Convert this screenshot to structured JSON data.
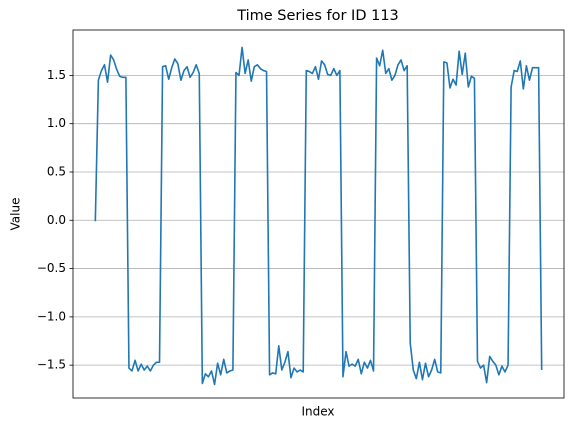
{
  "chart_data": {
    "type": "line",
    "title": "Time Series for ID 113",
    "x_label": "Index",
    "y_label": "Value",
    "color": "#1f77b4",
    "grid": true,
    "xlim": [
      -7.3,
      153.3
    ],
    "ylim": [
      -1.84,
      1.97
    ],
    "yticks": [
      {
        "value": -1.5,
        "label": "−1.5"
      },
      {
        "value": -1.0,
        "label": "−1.0"
      },
      {
        "value": -0.5,
        "label": "−0.5"
      },
      {
        "value": 0.0,
        "label": "0.0"
      },
      {
        "value": 0.5,
        "label": "0.5"
      },
      {
        "value": 1.0,
        "label": "1.0"
      },
      {
        "value": 1.5,
        "label": "1.5"
      }
    ],
    "values": [
      -0.01,
      1.45,
      1.55,
      1.61,
      1.43,
      1.71,
      1.66,
      1.56,
      1.49,
      1.48,
      1.48,
      -1.53,
      -1.56,
      -1.45,
      -1.56,
      -1.49,
      -1.55,
      -1.51,
      -1.56,
      -1.5,
      -1.47,
      -1.47,
      1.59,
      1.6,
      1.46,
      1.58,
      1.67,
      1.62,
      1.45,
      1.55,
      1.59,
      1.48,
      1.53,
      1.61,
      1.52,
      -1.69,
      -1.59,
      -1.62,
      -1.56,
      -1.7,
      -1.48,
      -1.6,
      -1.44,
      -1.58,
      -1.56,
      -1.55,
      1.53,
      1.5,
      1.79,
      1.52,
      1.66,
      1.44,
      1.59,
      1.61,
      1.57,
      1.55,
      1.54,
      -1.6,
      -1.58,
      -1.59,
      -1.3,
      -1.55,
      -1.47,
      -1.36,
      -1.63,
      -1.53,
      -1.57,
      -1.55,
      -1.57,
      1.55,
      1.54,
      1.52,
      1.59,
      1.46,
      1.65,
      1.61,
      1.51,
      1.5,
      1.57,
      1.5,
      1.55,
      -1.62,
      -1.36,
      -1.51,
      -1.49,
      -1.51,
      -1.44,
      -1.59,
      -1.47,
      -1.53,
      -1.45,
      -1.56,
      1.68,
      1.6,
      1.76,
      1.52,
      1.57,
      1.45,
      1.5,
      1.61,
      1.66,
      1.55,
      1.6,
      -1.27,
      -1.55,
      -1.64,
      -1.47,
      -1.65,
      -1.48,
      -1.62,
      -1.55,
      -1.44,
      -1.57,
      -1.58,
      1.64,
      1.63,
      1.37,
      1.46,
      1.4,
      1.75,
      1.51,
      1.73,
      1.38,
      1.49,
      1.47,
      -1.46,
      -1.53,
      -1.5,
      -1.68,
      -1.41,
      -1.46,
      -1.5,
      -1.6,
      -1.51,
      -1.57,
      -1.5,
      1.38,
      1.55,
      1.54,
      1.65,
      1.36,
      1.6,
      1.45,
      1.58,
      1.58,
      1.58,
      -1.55
    ]
  }
}
